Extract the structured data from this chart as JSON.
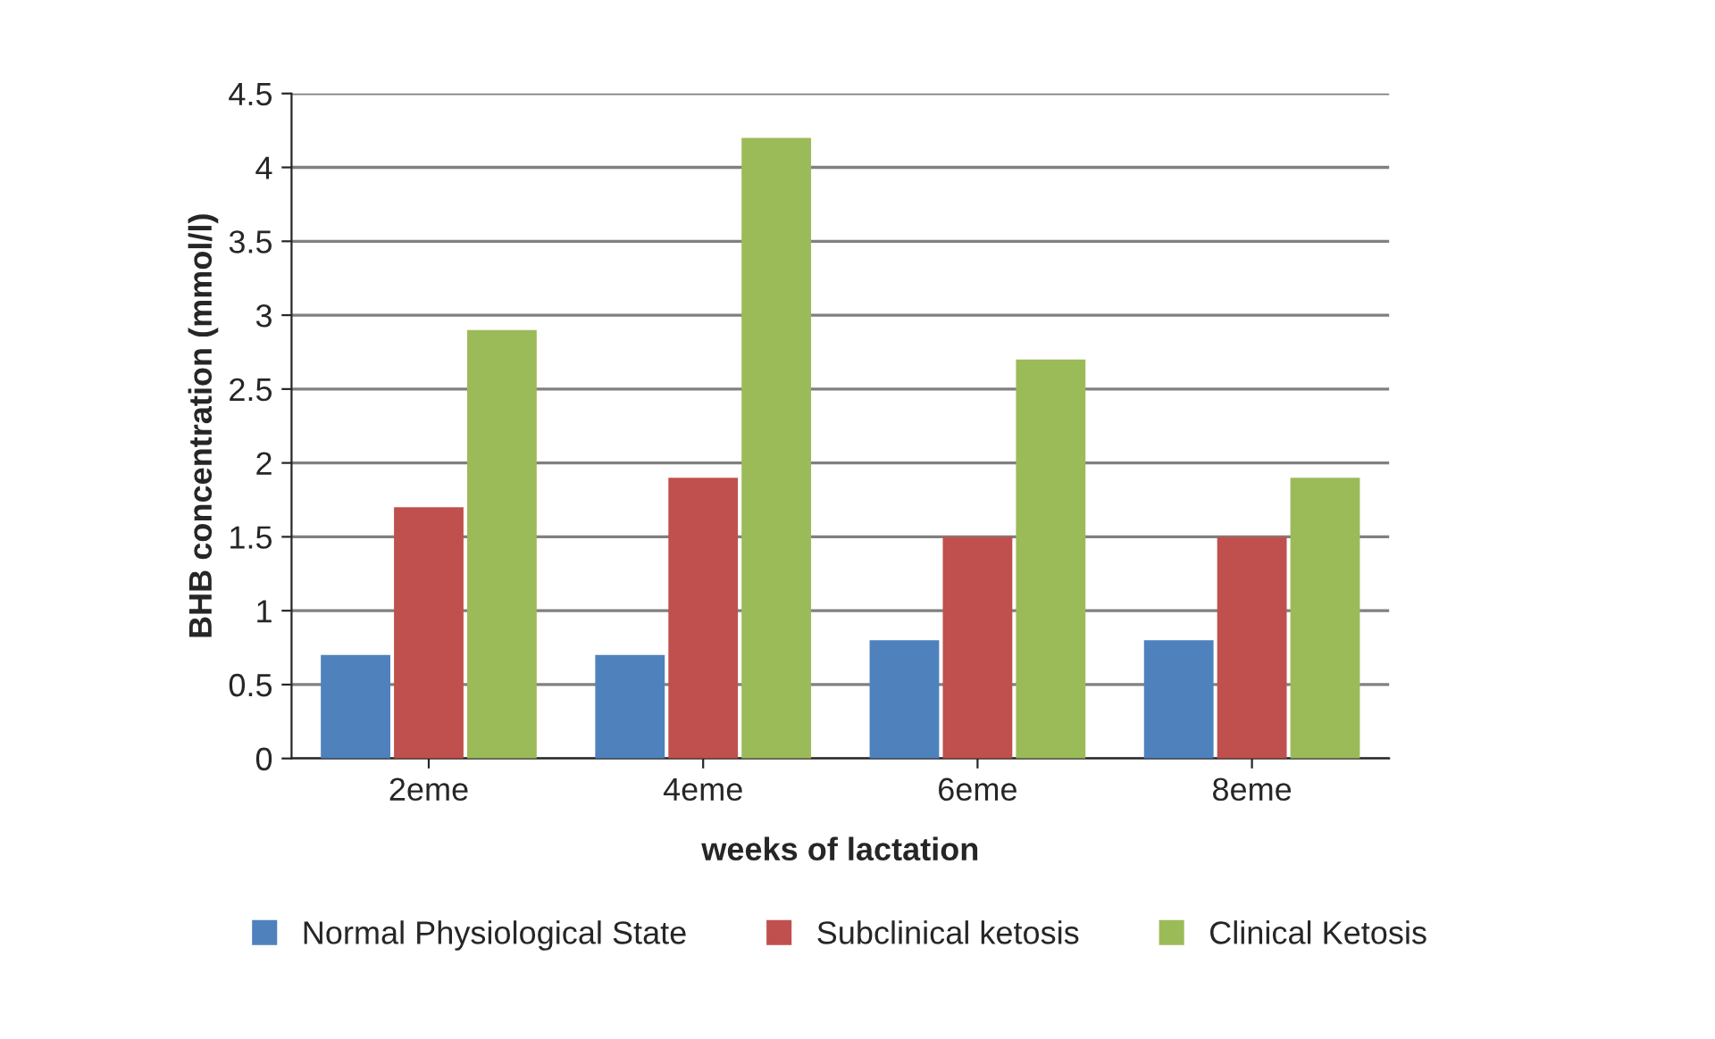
{
  "chart_data": {
    "type": "bar",
    "xlabel": "weeks of lactation",
    "ylabel": "BHB concentration (mmol/l)",
    "categories": [
      "2eme",
      "4eme",
      "6eme",
      "8eme"
    ],
    "series": [
      {
        "name": "Normal Physiological State",
        "color": "#4f81bd",
        "values": [
          0.7,
          0.7,
          0.8,
          0.8
        ]
      },
      {
        "name": "Subclinical ketosis",
        "color": "#c0504d",
        "values": [
          1.7,
          1.9,
          1.5,
          1.5
        ]
      },
      {
        "name": "Clinical Ketosis",
        "color": "#9bbb59",
        "values": [
          2.9,
          4.2,
          2.7,
          1.9
        ]
      }
    ],
    "ylim": [
      0,
      4.5
    ],
    "yticks": [
      0,
      0.5,
      1,
      1.5,
      2,
      2.5,
      3,
      3.5,
      4,
      4.5
    ],
    "grid": "y",
    "legend": "bottom"
  }
}
